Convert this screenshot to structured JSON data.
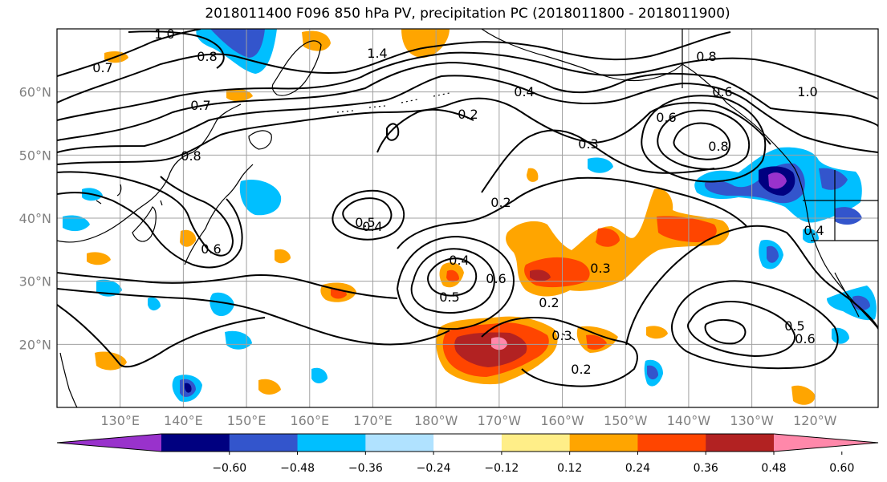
{
  "title": "2018011400 F096 850 hPa PV, precipitation PC (2018011800 - 2018011900)",
  "map": {
    "lon_range": [
      120,
      250
    ],
    "lat_range": [
      10,
      70
    ],
    "lat_ticks": [
      {
        "lat": 20,
        "label": "20°N"
      },
      {
        "lat": 30,
        "label": "30°N"
      },
      {
        "lat": 40,
        "label": "40°N"
      },
      {
        "lat": 50,
        "label": "50°N"
      },
      {
        "lat": 60,
        "label": "60°N"
      }
    ],
    "lon_ticks": [
      {
        "lon": 130,
        "label": "130°E"
      },
      {
        "lon": 140,
        "label": "140°E"
      },
      {
        "lon": 150,
        "label": "150°E"
      },
      {
        "lon": 160,
        "label": "160°E"
      },
      {
        "lon": 170,
        "label": "170°E"
      },
      {
        "lon": 180,
        "label": "180°W"
      },
      {
        "lon": 190,
        "label": "170°W"
      },
      {
        "lon": 200,
        "label": "160°W"
      },
      {
        "lon": 210,
        "label": "150°W"
      },
      {
        "lon": 220,
        "label": "140°W"
      },
      {
        "lon": 230,
        "label": "130°W"
      },
      {
        "lon": 240,
        "label": "120°W"
      }
    ],
    "grid": true,
    "pv_contour_labels": [
      "1.0",
      "0.8",
      "0.7",
      "1.4",
      "0.7",
      "0.8",
      "0.6",
      "0.6",
      "0.5",
      "0.4",
      "0.2",
      "0.4",
      "0.3",
      "0.2",
      "0.4",
      "0.5",
      "0.3",
      "0.2",
      "0.3",
      "0.2",
      "0.6",
      "0.8",
      "0.8",
      "1.0",
      "0.6",
      "0.4",
      "0.5",
      "0.6"
    ],
    "precip_blobs": [
      {
        "lon": 145,
        "lat": 67,
        "level": -0.36
      },
      {
        "lon": 141,
        "lat": 63,
        "level": -0.24
      },
      {
        "lon": 154,
        "lat": 42,
        "level": -0.24
      },
      {
        "lon": 187,
        "lat": 19,
        "level": 0.36
      },
      {
        "lon": 190,
        "lat": 20,
        "level": 0.48
      },
      {
        "lon": 190,
        "lat": 20,
        "level": 0.6
      },
      {
        "lon": 200,
        "lat": 33,
        "level": 0.36
      },
      {
        "lon": 218,
        "lat": 38,
        "level": 0.36
      },
      {
        "lon": 231,
        "lat": 44,
        "level": -0.48
      },
      {
        "lon": 232,
        "lat": 44,
        "level": -0.6
      },
      {
        "lon": 141,
        "lat": 14,
        "level": -0.48
      },
      {
        "lon": 183,
        "lat": 31,
        "level": 0.36
      }
    ]
  },
  "colorbar": {
    "colors": [
      "#9932cc",
      "#000080",
      "#3355cc",
      "#00bfff",
      "#b0e2ff",
      "#ffffff",
      "#ffee88",
      "#ffa500",
      "#ff4500",
      "#b22222",
      "#ff88aa"
    ],
    "labels": [
      "−0.60",
      "−0.48",
      "−0.36",
      "−0.24",
      "−0.12",
      "0.12",
      "0.24",
      "0.36",
      "0.48",
      "0.60"
    ]
  }
}
